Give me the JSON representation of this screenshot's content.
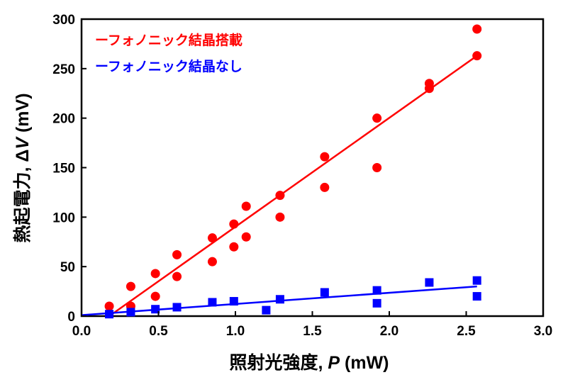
{
  "chart_data": {
    "type": "scatter",
    "xlabel": "照射光強度, P (mW)",
    "xlabel_parts": [
      "照射光強度, ",
      "P",
      " (mW)"
    ],
    "ylabel": "熱起電力, ΔV (mV)",
    "ylabel_parts": [
      "熱起電力, Δ",
      "V",
      " (mV)"
    ],
    "xlim": [
      0.0,
      3.0
    ],
    "ylim": [
      0,
      300
    ],
    "x_ticks": [
      "0.0",
      "0.5",
      "1.0",
      "1.5",
      "2.0",
      "2.5",
      "3.0"
    ],
    "y_ticks": [
      "0",
      "50",
      "100",
      "150",
      "200",
      "250",
      "300"
    ],
    "grid": false,
    "legend_position": "top-left",
    "series": [
      {
        "name": "ーフォノニック結晶搭載",
        "color": "#ff0000",
        "marker": "circle",
        "points": [
          [
            0.18,
            10
          ],
          [
            0.32,
            30
          ],
          [
            0.32,
            10
          ],
          [
            0.48,
            43
          ],
          [
            0.48,
            20
          ],
          [
            0.62,
            62
          ],
          [
            0.62,
            40
          ],
          [
            0.85,
            79
          ],
          [
            0.85,
            55
          ],
          [
            0.99,
            93
          ],
          [
            0.99,
            70
          ],
          [
            1.07,
            111
          ],
          [
            1.07,
            80
          ],
          [
            1.29,
            122
          ],
          [
            1.29,
            100
          ],
          [
            1.58,
            161
          ],
          [
            1.58,
            130
          ],
          [
            1.92,
            200
          ],
          [
            1.92,
            150
          ],
          [
            2.26,
            235
          ],
          [
            2.26,
            230
          ],
          [
            2.57,
            290
          ],
          [
            2.57,
            263
          ]
        ],
        "fit": [
          [
            0.18,
            0
          ],
          [
            2.57,
            263
          ]
        ]
      },
      {
        "name": "ーフォノニック結晶なし",
        "color": "#0000ff",
        "marker": "square",
        "points": [
          [
            0.18,
            2
          ],
          [
            0.32,
            4
          ],
          [
            0.48,
            7
          ],
          [
            0.62,
            9
          ],
          [
            0.85,
            14
          ],
          [
            0.99,
            15
          ],
          [
            1.2,
            6
          ],
          [
            1.29,
            17
          ],
          [
            1.58,
            24
          ],
          [
            1.92,
            26
          ],
          [
            1.92,
            13
          ],
          [
            2.26,
            34
          ],
          [
            2.57,
            36
          ],
          [
            2.57,
            20
          ]
        ],
        "fit": [
          [
            0.0,
            1
          ],
          [
            2.57,
            30
          ]
        ]
      }
    ]
  }
}
